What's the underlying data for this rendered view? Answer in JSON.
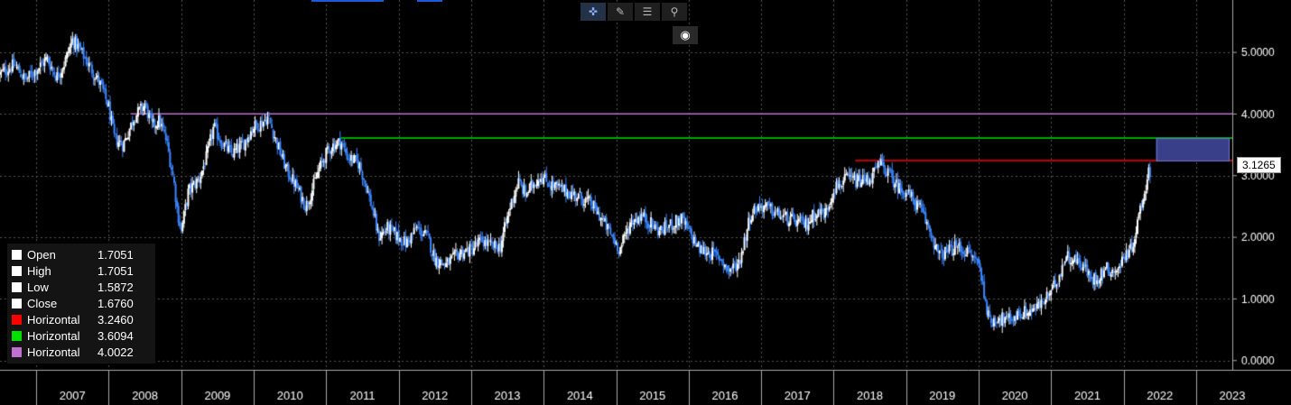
{
  "toolbar": {
    "icons": [
      "crosshair-icon",
      "pencil-icon",
      "list-icon",
      "zoom-icon"
    ],
    "settings_icon": "gear-icon"
  },
  "legend": [
    {
      "label": "Open",
      "value": "1.7051",
      "color": "#ffffff"
    },
    {
      "label": "High",
      "value": "1.7051",
      "color": "#ffffff"
    },
    {
      "label": "Low",
      "value": "1.5872",
      "color": "#ffffff"
    },
    {
      "label": "Close",
      "value": "1.6760",
      "color": "#ffffff"
    },
    {
      "label": "Horizontal",
      "value": "3.2460",
      "color": "#ff0000"
    },
    {
      "label": "Horizontal",
      "value": "3.6094",
      "color": "#00e000"
    },
    {
      "label": "Horizontal",
      "value": "4.0022",
      "color": "#c070d0"
    }
  ],
  "last_price_label": "3.1265",
  "chart_data": {
    "type": "candlestick",
    "x_ticks": [
      "2007",
      "2008",
      "2009",
      "2010",
      "2011",
      "2012",
      "2013",
      "2014",
      "2015",
      "2016",
      "2017",
      "2018",
      "2019",
      "2020",
      "2021",
      "2022",
      "2023"
    ],
    "y_ticks": [
      "0.0000",
      "1.0000",
      "2.0000",
      "3.0000",
      "4.0000",
      "5.0000"
    ],
    "ylim": [
      -0.15,
      5.85
    ],
    "xlim": [
      2006.5,
      2023.5
    ],
    "grid": true,
    "up_color": "#ffffff",
    "down_color": "#3a86ff",
    "horizontal_lines": [
      {
        "value": 4.0022,
        "color": "#c070d0",
        "from": 2008.3,
        "to": 2023.5
      },
      {
        "value": 3.6094,
        "color": "#00e000",
        "from": 2011.2,
        "to": 2023.5
      },
      {
        "value": 3.246,
        "color": "#ff0000",
        "from": 2018.3,
        "to": 2023.5
      }
    ],
    "shaded_zone": {
      "from": 2022.45,
      "to": 2023.45,
      "y0": 3.246,
      "y1": 3.6094,
      "color": "#3a3f8a"
    },
    "last_price": 3.1265,
    "path": [
      [
        2006.5,
        4.65
      ],
      [
        2006.7,
        4.8
      ],
      [
        2006.85,
        4.55
      ],
      [
        2007.0,
        4.72
      ],
      [
        2007.15,
        4.9
      ],
      [
        2007.28,
        4.6
      ],
      [
        2007.38,
        4.8
      ],
      [
        2007.5,
        5.2
      ],
      [
        2007.6,
        5.05
      ],
      [
        2007.75,
        4.75
      ],
      [
        2007.9,
        4.45
      ],
      [
        2008.0,
        4.1
      ],
      [
        2008.08,
        3.6
      ],
      [
        2008.2,
        3.5
      ],
      [
        2008.35,
        3.95
      ],
      [
        2008.5,
        4.15
      ],
      [
        2008.6,
        3.8
      ],
      [
        2008.7,
        3.9
      ],
      [
        2008.8,
        3.55
      ],
      [
        2008.9,
        2.9
      ],
      [
        2008.95,
        2.4
      ],
      [
        2009.0,
        2.1
      ],
      [
        2009.1,
        2.75
      ],
      [
        2009.25,
        2.95
      ],
      [
        2009.35,
        3.3
      ],
      [
        2009.45,
        3.8
      ],
      [
        2009.55,
        3.55
      ],
      [
        2009.7,
        3.35
      ],
      [
        2009.85,
        3.5
      ],
      [
        2010.0,
        3.8
      ],
      [
        2010.1,
        3.85
      ],
      [
        2010.2,
        3.95
      ],
      [
        2010.3,
        3.6
      ],
      [
        2010.45,
        3.1
      ],
      [
        2010.6,
        2.8
      ],
      [
        2010.72,
        2.5
      ],
      [
        2010.8,
        2.75
      ],
      [
        2010.9,
        3.1
      ],
      [
        2011.0,
        3.35
      ],
      [
        2011.1,
        3.5
      ],
      [
        2011.2,
        3.55
      ],
      [
        2011.3,
        3.3
      ],
      [
        2011.45,
        3.2
      ],
      [
        2011.55,
        2.85
      ],
      [
        2011.65,
        2.4
      ],
      [
        2011.72,
        2.0
      ],
      [
        2011.85,
        2.15
      ],
      [
        2011.95,
        2.05
      ],
      [
        2012.1,
        1.9
      ],
      [
        2012.25,
        2.15
      ],
      [
        2012.4,
        2.0
      ],
      [
        2012.5,
        1.65
      ],
      [
        2012.65,
        1.55
      ],
      [
        2012.85,
        1.75
      ],
      [
        2013.0,
        1.8
      ],
      [
        2013.15,
        1.95
      ],
      [
        2013.28,
        1.85
      ],
      [
        2013.4,
        1.85
      ],
      [
        2013.55,
        2.55
      ],
      [
        2013.65,
        2.9
      ],
      [
        2013.75,
        2.7
      ],
      [
        2013.95,
        3.0
      ],
      [
        2014.1,
        2.85
      ],
      [
        2014.3,
        2.75
      ],
      [
        2014.5,
        2.65
      ],
      [
        2014.65,
        2.55
      ],
      [
        2014.8,
        2.3
      ],
      [
        2014.9,
        2.1
      ],
      [
        2015.0,
        1.9
      ],
      [
        2015.05,
        1.8
      ],
      [
        2015.2,
        2.25
      ],
      [
        2015.35,
        2.35
      ],
      [
        2015.5,
        2.2
      ],
      [
        2015.6,
        2.1
      ],
      [
        2015.75,
        2.2
      ],
      [
        2015.9,
        2.3
      ],
      [
        2016.0,
        2.1
      ],
      [
        2016.15,
        1.8
      ],
      [
        2016.3,
        1.75
      ],
      [
        2016.45,
        1.65
      ],
      [
        2016.55,
        1.45
      ],
      [
        2016.7,
        1.6
      ],
      [
        2016.85,
        2.35
      ],
      [
        2016.95,
        2.5
      ],
      [
        2017.05,
        2.5
      ],
      [
        2017.2,
        2.4
      ],
      [
        2017.35,
        2.3
      ],
      [
        2017.5,
        2.25
      ],
      [
        2017.62,
        2.2
      ],
      [
        2017.75,
        2.4
      ],
      [
        2017.9,
        2.4
      ],
      [
        2018.0,
        2.8
      ],
      [
        2018.2,
        2.95
      ],
      [
        2018.35,
        2.9
      ],
      [
        2018.5,
        2.95
      ],
      [
        2018.65,
        3.2
      ],
      [
        2018.75,
        3.05
      ],
      [
        2018.9,
        2.8
      ],
      [
        2019.0,
        2.75
      ],
      [
        2019.1,
        2.6
      ],
      [
        2019.2,
        2.45
      ],
      [
        2019.35,
        2.05
      ],
      [
        2019.45,
        1.7
      ],
      [
        2019.55,
        1.75
      ],
      [
        2019.7,
        1.85
      ],
      [
        2019.85,
        1.75
      ],
      [
        2020.0,
        1.6
      ],
      [
        2020.08,
        1.1
      ],
      [
        2020.15,
        0.6
      ],
      [
        2020.25,
        0.7
      ],
      [
        2020.4,
        0.65
      ],
      [
        2020.55,
        0.75
      ],
      [
        2020.7,
        0.8
      ],
      [
        2020.85,
        0.9
      ],
      [
        2021.0,
        1.1
      ],
      [
        2021.1,
        1.35
      ],
      [
        2021.2,
        1.7
      ],
      [
        2021.3,
        1.65
      ],
      [
        2021.45,
        1.55
      ],
      [
        2021.55,
        1.3
      ],
      [
        2021.65,
        1.35
      ],
      [
        2021.75,
        1.5
      ],
      [
        2021.85,
        1.45
      ],
      [
        2021.95,
        1.5
      ],
      [
        2022.0,
        1.7
      ],
      [
        2022.1,
        1.8
      ],
      [
        2022.15,
        2.0
      ],
      [
        2022.22,
        2.4
      ],
      [
        2022.3,
        2.8
      ],
      [
        2022.35,
        3.05
      ],
      [
        2022.38,
        3.1265
      ]
    ]
  }
}
